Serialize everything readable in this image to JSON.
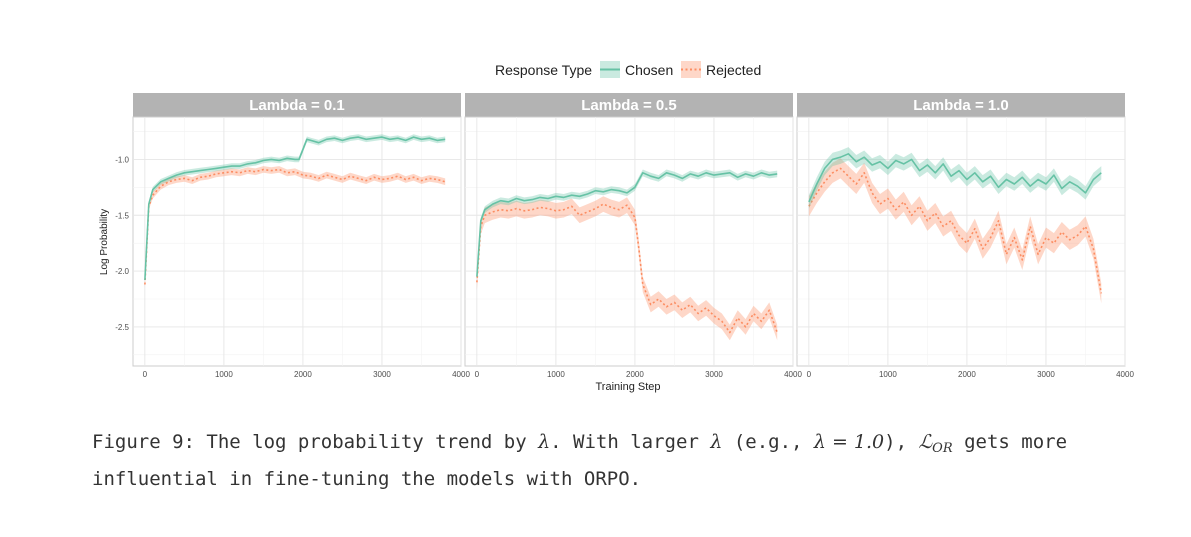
{
  "chart_data": {
    "type": "line",
    "legend": {
      "title": "Response Type",
      "position": "top",
      "entries": [
        {
          "name": "Chosen",
          "color": "#66c2a5"
        },
        {
          "name": "Rejected",
          "color": "#fc8d62"
        }
      ]
    },
    "xlabel": "Training Step",
    "ylabel": "Log Probability",
    "xlim": [
      -150,
      4000
    ],
    "ylim": [
      -2.85,
      -0.62
    ],
    "xticks": [
      0,
      1000,
      2000,
      3000,
      4000
    ],
    "yticks": [
      -1.0,
      -1.5,
      -2.0,
      -2.5
    ],
    "xtick_labels": [
      "0",
      "1000",
      "2000",
      "3000",
      "4000"
    ],
    "ytick_labels": [
      "-1.0",
      "-1.5",
      "-2.0",
      "-2.5"
    ],
    "grid": true,
    "panels": [
      {
        "title": "Lambda = 0.1",
        "series": [
          {
            "name": "Chosen",
            "band": 0.025,
            "x": [
              0,
              50,
              100,
              200,
              300,
              400,
              500,
              600,
              700,
              800,
              900,
              1000,
              1100,
              1200,
              1300,
              1400,
              1500,
              1600,
              1700,
              1800,
              1900,
              1950,
              2050,
              2100,
              2200,
              2300,
              2400,
              2500,
              2600,
              2700,
              2800,
              2900,
              3000,
              3100,
              3200,
              3300,
              3400,
              3500,
              3600,
              3700,
              3800
            ],
            "y": [
              -2.08,
              -1.4,
              -1.27,
              -1.2,
              -1.17,
              -1.14,
              -1.12,
              -1.11,
              -1.1,
              -1.09,
              -1.08,
              -1.07,
              -1.06,
              -1.06,
              -1.04,
              -1.03,
              -1.01,
              -1.0,
              -1.01,
              -0.99,
              -1.0,
              -1.0,
              -0.82,
              -0.83,
              -0.85,
              -0.82,
              -0.81,
              -0.83,
              -0.81,
              -0.8,
              -0.82,
              -0.81,
              -0.8,
              -0.82,
              -0.81,
              -0.83,
              -0.8,
              -0.82,
              -0.81,
              -0.83,
              -0.82
            ]
          },
          {
            "name": "Rejected",
            "band": 0.03,
            "x": [
              0,
              50,
              100,
              200,
              300,
              400,
              500,
              600,
              700,
              800,
              900,
              1000,
              1100,
              1200,
              1300,
              1400,
              1500,
              1600,
              1700,
              1800,
              1900,
              2000,
              2100,
              2200,
              2300,
              2400,
              2500,
              2600,
              2700,
              2800,
              2900,
              3000,
              3100,
              3200,
              3300,
              3400,
              3500,
              3600,
              3700,
              3800
            ],
            "y": [
              -2.12,
              -1.42,
              -1.32,
              -1.24,
              -1.2,
              -1.18,
              -1.17,
              -1.19,
              -1.16,
              -1.15,
              -1.13,
              -1.12,
              -1.11,
              -1.12,
              -1.1,
              -1.11,
              -1.09,
              -1.1,
              -1.09,
              -1.12,
              -1.11,
              -1.14,
              -1.15,
              -1.17,
              -1.14,
              -1.16,
              -1.18,
              -1.15,
              -1.17,
              -1.19,
              -1.16,
              -1.18,
              -1.17,
              -1.15,
              -1.18,
              -1.16,
              -1.19,
              -1.17,
              -1.18,
              -1.2
            ]
          }
        ]
      },
      {
        "title": "Lambda = 0.5",
        "series": [
          {
            "name": "Chosen",
            "band": 0.03,
            "x": [
              0,
              50,
              100,
              200,
              300,
              400,
              500,
              600,
              700,
              800,
              900,
              1000,
              1100,
              1200,
              1300,
              1400,
              1500,
              1600,
              1700,
              1800,
              1900,
              2000,
              2100,
              2200,
              2300,
              2400,
              2500,
              2600,
              2700,
              2800,
              2900,
              3000,
              3100,
              3200,
              3300,
              3400,
              3500,
              3600,
              3700,
              3800
            ],
            "y": [
              -2.05,
              -1.55,
              -1.45,
              -1.4,
              -1.37,
              -1.38,
              -1.35,
              -1.37,
              -1.36,
              -1.34,
              -1.35,
              -1.33,
              -1.34,
              -1.32,
              -1.33,
              -1.31,
              -1.28,
              -1.29,
              -1.27,
              -1.28,
              -1.3,
              -1.25,
              -1.12,
              -1.15,
              -1.17,
              -1.12,
              -1.14,
              -1.17,
              -1.13,
              -1.15,
              -1.12,
              -1.14,
              -1.13,
              -1.12,
              -1.16,
              -1.13,
              -1.15,
              -1.12,
              -1.14,
              -1.13
            ]
          },
          {
            "name": "Rejected",
            "band": 0.07,
            "x": [
              0,
              50,
              100,
              200,
              300,
              400,
              500,
              600,
              700,
              800,
              900,
              1000,
              1100,
              1200,
              1300,
              1400,
              1500,
              1600,
              1700,
              1800,
              1900,
              2000,
              2050,
              2100,
              2200,
              2300,
              2400,
              2500,
              2600,
              2700,
              2800,
              2900,
              3000,
              3100,
              3200,
              3300,
              3400,
              3500,
              3600,
              3700,
              3800
            ],
            "y": [
              -2.1,
              -1.6,
              -1.5,
              -1.47,
              -1.45,
              -1.46,
              -1.44,
              -1.46,
              -1.45,
              -1.43,
              -1.44,
              -1.46,
              -1.45,
              -1.42,
              -1.5,
              -1.47,
              -1.44,
              -1.4,
              -1.43,
              -1.45,
              -1.41,
              -1.52,
              -1.8,
              -2.12,
              -2.3,
              -2.25,
              -2.32,
              -2.28,
              -2.35,
              -2.3,
              -2.38,
              -2.33,
              -2.4,
              -2.45,
              -2.55,
              -2.42,
              -2.5,
              -2.38,
              -2.45,
              -2.35,
              -2.55
            ]
          }
        ]
      },
      {
        "title": "Lambda = 1.0",
        "series": [
          {
            "name": "Chosen",
            "band": 0.06,
            "x": [
              0,
              100,
              200,
              300,
              400,
              500,
              600,
              700,
              800,
              900,
              1000,
              1100,
              1200,
              1300,
              1400,
              1500,
              1600,
              1700,
              1800,
              1900,
              2000,
              2100,
              2200,
              2300,
              2400,
              2500,
              2600,
              2700,
              2800,
              2900,
              3000,
              3100,
              3200,
              3300,
              3400,
              3500,
              3600,
              3700
            ],
            "y": [
              -1.38,
              -1.22,
              -1.08,
              -1.0,
              -0.98,
              -0.95,
              -1.02,
              -0.98,
              -1.05,
              -1.02,
              -1.08,
              -1.01,
              -1.04,
              -1.0,
              -1.1,
              -1.05,
              -1.12,
              -1.04,
              -1.15,
              -1.1,
              -1.18,
              -1.12,
              -1.2,
              -1.15,
              -1.25,
              -1.18,
              -1.22,
              -1.16,
              -1.24,
              -1.18,
              -1.22,
              -1.14,
              -1.26,
              -1.2,
              -1.24,
              -1.3,
              -1.18,
              -1.12
            ]
          },
          {
            "name": "Rejected",
            "band": 0.09,
            "x": [
              0,
              100,
              200,
              300,
              400,
              500,
              600,
              700,
              800,
              900,
              1000,
              1100,
              1200,
              1300,
              1400,
              1500,
              1600,
              1700,
              1800,
              1900,
              2000,
              2100,
              2200,
              2300,
              2400,
              2500,
              2600,
              2700,
              2800,
              2900,
              3000,
              3100,
              3200,
              3300,
              3400,
              3500,
              3600,
              3700
            ],
            "y": [
              -1.42,
              -1.3,
              -1.2,
              -1.12,
              -1.08,
              -1.15,
              -1.22,
              -1.12,
              -1.3,
              -1.4,
              -1.35,
              -1.45,
              -1.38,
              -1.5,
              -1.42,
              -1.55,
              -1.48,
              -1.6,
              -1.55,
              -1.68,
              -1.75,
              -1.62,
              -1.8,
              -1.7,
              -1.55,
              -1.85,
              -1.7,
              -1.9,
              -1.6,
              -1.85,
              -1.7,
              -1.75,
              -1.65,
              -1.72,
              -1.68,
              -1.6,
              -1.8,
              -2.2
            ]
          }
        ]
      }
    ]
  },
  "caption": {
    "label": "Figure 9:",
    "text1": " The log probability trend by ",
    "lambda": "λ",
    "text2": ". With larger ",
    "text3": " (e.g., ",
    "lambda_eq": "λ = 1.0",
    "text4": "), ",
    "loss": "ℒ",
    "loss_sub": "OR",
    "text5": " gets more influential in fine-tuning the models with ORPO."
  }
}
